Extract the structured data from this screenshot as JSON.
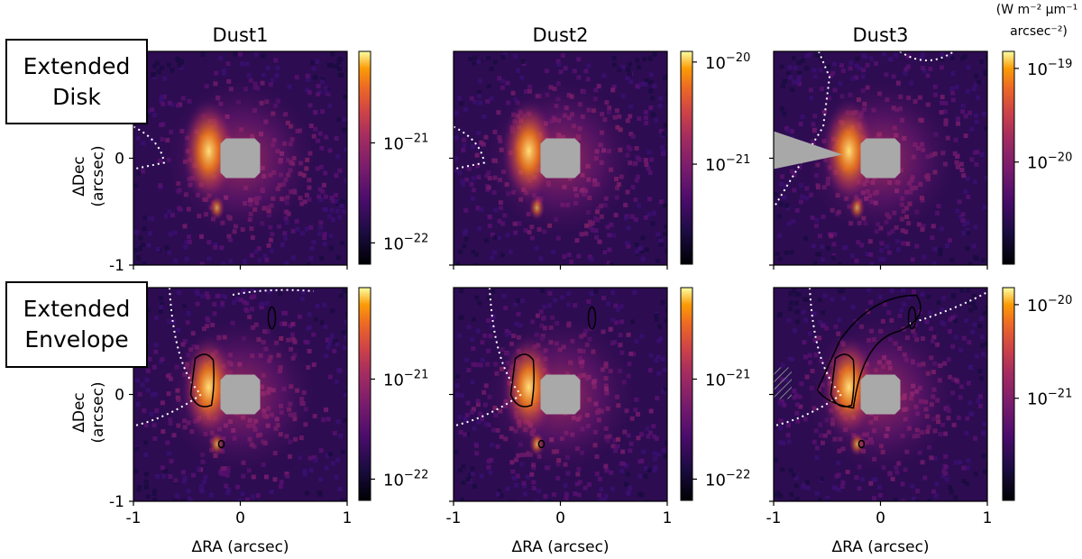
{
  "chart_data": {
    "type": "heatmap",
    "description_rows": [
      "Extended Disk",
      "Extended Envelope"
    ],
    "row_labels": [
      [
        "Extended",
        "Disk"
      ],
      [
        "Extended",
        "Envelope"
      ]
    ],
    "column_titles": [
      "Dust1",
      "Dust2",
      "Dust3"
    ],
    "xlabel": "ΔRA (arcsec)",
    "ylabel": [
      "ΔDec",
      "(arcsec)"
    ],
    "xlim": [
      -1,
      1
    ],
    "ylim": [
      -1,
      1
    ],
    "x_ticks": [
      "-1",
      "0",
      "1"
    ],
    "y_ticks": [
      "0",
      "-1"
    ],
    "colorbar_unit": [
      "(W m⁻² µm⁻¹",
      "arcsec⁻²)"
    ],
    "colormap": "inferno",
    "scale": "log",
    "mask_color": "#aaaaaa",
    "panels": [
      {
        "row": 0,
        "col": 0,
        "cbar_ticks": [
          {
            "base": "10",
            "exp": "−21",
            "value": 1e-21
          },
          {
            "base": "10",
            "exp": "−22",
            "value": 1e-22
          }
        ]
      },
      {
        "row": 0,
        "col": 1,
        "cbar_ticks": [
          {
            "base": "10",
            "exp": "−20",
            "value": 1e-20
          },
          {
            "base": "10",
            "exp": "−21",
            "value": 1e-21
          }
        ]
      },
      {
        "row": 0,
        "col": 2,
        "cbar_ticks": [
          {
            "base": "10",
            "exp": "−19",
            "value": 1e-19
          },
          {
            "base": "10",
            "exp": "−20",
            "value": 1e-20
          }
        ]
      },
      {
        "row": 1,
        "col": 0,
        "cbar_ticks": [
          {
            "base": "10",
            "exp": "−21",
            "value": 1e-21
          },
          {
            "base": "10",
            "exp": "−22",
            "value": 1e-22
          }
        ]
      },
      {
        "row": 1,
        "col": 1,
        "cbar_ticks": [
          {
            "base": "10",
            "exp": "−21",
            "value": 1e-21
          },
          {
            "base": "10",
            "exp": "−22",
            "value": 1e-22
          }
        ]
      },
      {
        "row": 1,
        "col": 2,
        "cbar_ticks": [
          {
            "base": "10",
            "exp": "−20",
            "value": 1e-20
          },
          {
            "base": "10",
            "exp": "−21",
            "value": 1e-21
          }
        ]
      }
    ],
    "contours": "black contours on Extended Envelope row; white dotted boundary lines on several panels",
    "grid": false
  }
}
